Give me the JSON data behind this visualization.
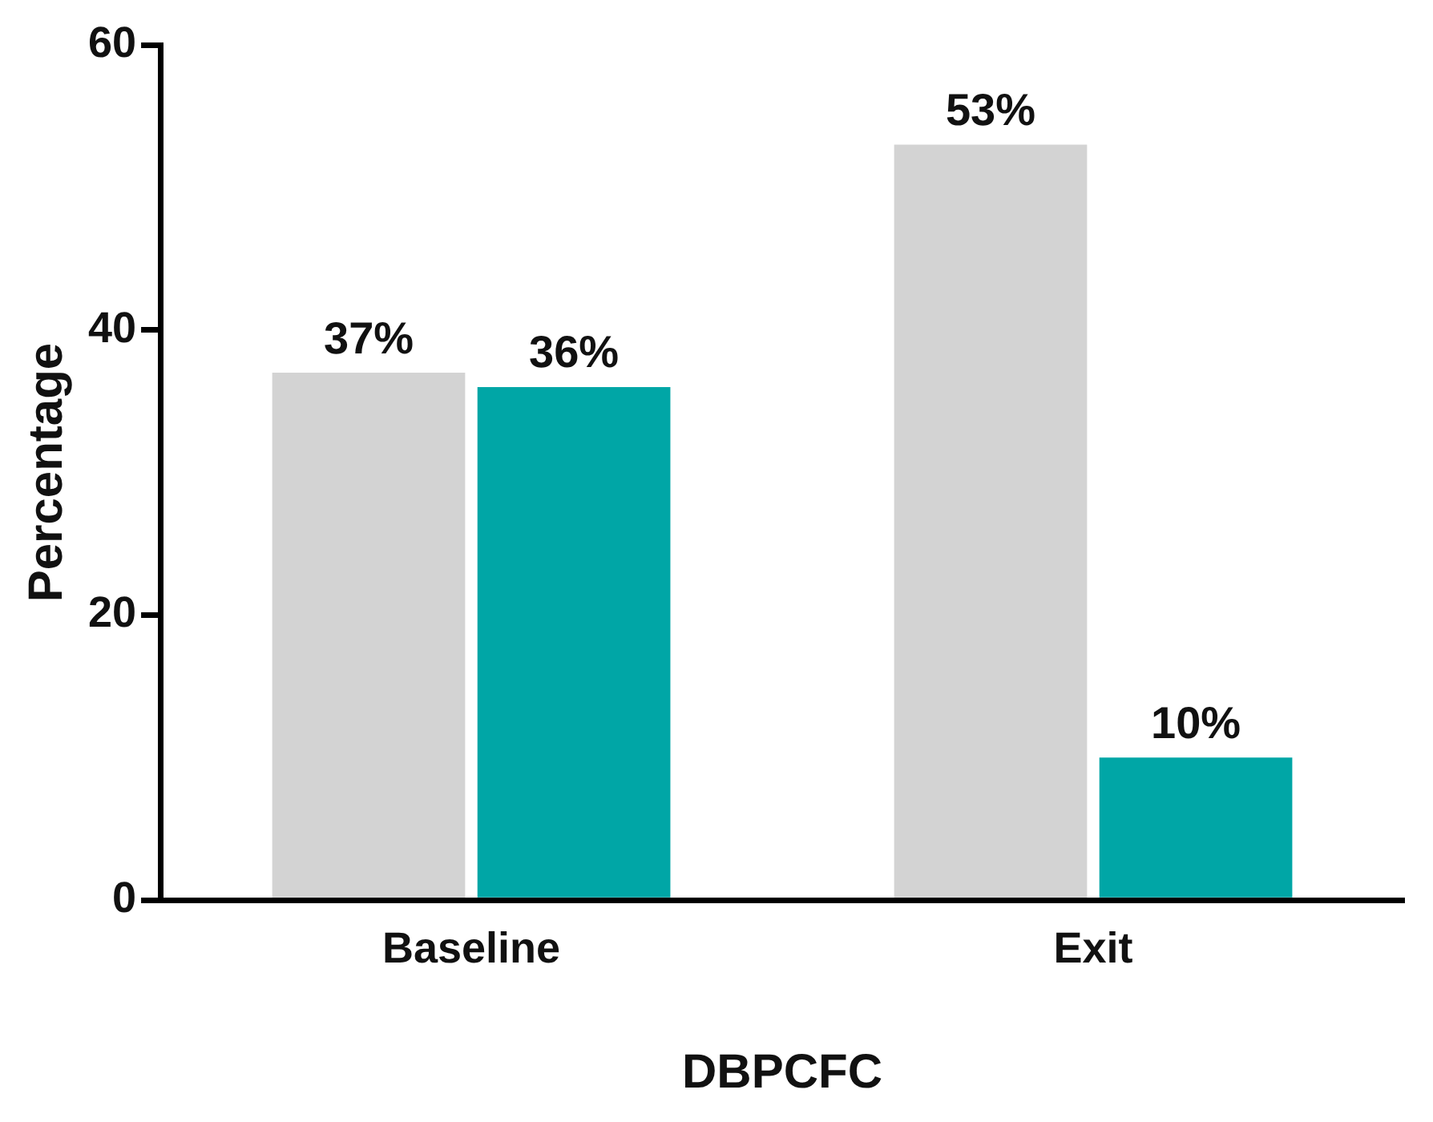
{
  "chart_data": {
    "type": "bar",
    "xlabel": "DBPCFC",
    "ylabel": "Percentage",
    "categories": [
      "Baseline",
      "Exit"
    ],
    "series": [
      {
        "color": "#d3d3d3",
        "values": [
          37,
          53
        ],
        "value_labels": [
          "37%",
          "53%"
        ]
      },
      {
        "color": "#00a6a6",
        "values": [
          36,
          10
        ],
        "value_labels": [
          "36%",
          "10%"
        ]
      }
    ],
    "ylim": [
      0,
      60
    ],
    "yticks": [
      0,
      20,
      40,
      60
    ],
    "grid": false,
    "legend": false
  }
}
